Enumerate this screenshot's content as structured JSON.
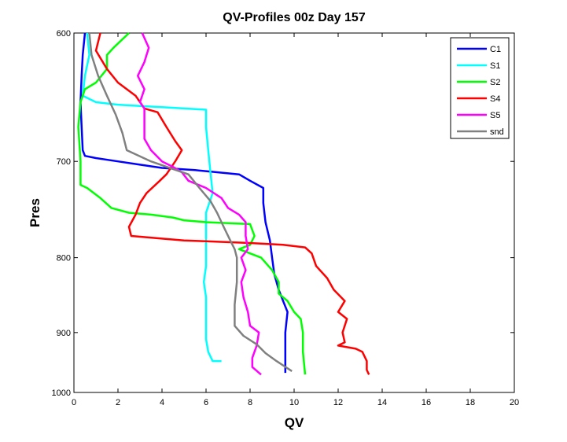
{
  "chart_data": {
    "type": "line",
    "title": "QV-Profiles 00z Day 157",
    "xlabel": "QV",
    "ylabel": "Pres",
    "xlim": [
      0,
      20
    ],
    "ylim": [
      600,
      1000
    ],
    "y_scale": "reciprocal",
    "y_reversed": true,
    "xticks": [
      0,
      2,
      4,
      6,
      8,
      10,
      12,
      14,
      16,
      18,
      20
    ],
    "yticks": [
      600,
      700,
      800,
      900,
      1000
    ],
    "grid": false,
    "legend_position": "top-right",
    "series": [
      {
        "name": "C1",
        "color": "#0000ff",
        "points": [
          [
            0.5,
            600
          ],
          [
            0.4,
            615
          ],
          [
            0.35,
            630
          ],
          [
            0.3,
            650
          ],
          [
            0.35,
            670
          ],
          [
            0.4,
            690
          ],
          [
            0.5,
            695
          ],
          [
            1.0,
            697
          ],
          [
            2.0,
            700
          ],
          [
            3.0,
            703
          ],
          [
            4.0,
            706
          ],
          [
            5.5,
            708
          ],
          [
            6.5,
            710
          ],
          [
            7.5,
            712
          ],
          [
            8.0,
            718
          ],
          [
            8.6,
            725
          ],
          [
            8.6,
            740
          ],
          [
            8.7,
            760
          ],
          [
            8.9,
            780
          ],
          [
            9.0,
            800
          ],
          [
            9.1,
            820
          ],
          [
            9.3,
            840
          ],
          [
            9.5,
            855
          ],
          [
            9.7,
            870
          ],
          [
            9.6,
            900
          ],
          [
            9.6,
            930
          ],
          [
            9.6,
            965
          ]
        ]
      },
      {
        "name": "S1",
        "color": "#00ffff",
        "points": [
          [
            0.6,
            600
          ],
          [
            0.7,
            615
          ],
          [
            0.5,
            630
          ],
          [
            0.4,
            645
          ],
          [
            1.0,
            650
          ],
          [
            2.0,
            652
          ],
          [
            3.0,
            653
          ],
          [
            4.0,
            654
          ],
          [
            5.0,
            655
          ],
          [
            6.0,
            656
          ],
          [
            6.0,
            670
          ],
          [
            6.1,
            690
          ],
          [
            6.2,
            710
          ],
          [
            6.3,
            730
          ],
          [
            6.0,
            750
          ],
          [
            6.0,
            770
          ],
          [
            6.0,
            790
          ],
          [
            6.0,
            810
          ],
          [
            5.9,
            830
          ],
          [
            6.0,
            850
          ],
          [
            6.0,
            870
          ],
          [
            6.0,
            890
          ],
          [
            6.0,
            910
          ],
          [
            6.1,
            930
          ],
          [
            6.3,
            945
          ],
          [
            6.7,
            945
          ]
        ]
      },
      {
        "name": "S2",
        "color": "#00ff00",
        "points": [
          [
            2.5,
            600
          ],
          [
            1.8,
            610
          ],
          [
            1.5,
            615
          ],
          [
            1.5,
            625
          ],
          [
            1.0,
            635
          ],
          [
            0.5,
            640
          ],
          [
            0.3,
            650
          ],
          [
            0.2,
            670
          ],
          [
            0.3,
            700
          ],
          [
            0.3,
            722
          ],
          [
            0.6,
            725
          ],
          [
            1.2,
            735
          ],
          [
            1.7,
            745
          ],
          [
            2.5,
            750
          ],
          [
            3.5,
            752
          ],
          [
            4.5,
            755
          ],
          [
            5.0,
            758
          ],
          [
            6.0,
            760
          ],
          [
            7.0,
            761
          ],
          [
            8.0,
            762
          ],
          [
            8.2,
            775
          ],
          [
            8.0,
            785
          ],
          [
            7.5,
            790
          ],
          [
            8.0,
            795
          ],
          [
            8.5,
            800
          ],
          [
            9.0,
            815
          ],
          [
            9.3,
            830
          ],
          [
            9.3,
            845
          ],
          [
            9.7,
            855
          ],
          [
            10.0,
            870
          ],
          [
            10.3,
            880
          ],
          [
            10.4,
            900
          ],
          [
            10.4,
            930
          ],
          [
            10.5,
            968
          ]
        ]
      },
      {
        "name": "S4",
        "color": "#ff0000",
        "points": [
          [
            1.2,
            600
          ],
          [
            1.0,
            612
          ],
          [
            1.5,
            625
          ],
          [
            2.0,
            635
          ],
          [
            2.8,
            645
          ],
          [
            3.2,
            655
          ],
          [
            3.8,
            658
          ],
          [
            4.2,
            670
          ],
          [
            4.6,
            682
          ],
          [
            4.9,
            690
          ],
          [
            4.6,
            700
          ],
          [
            4.2,
            712
          ],
          [
            3.9,
            718
          ],
          [
            3.3,
            730
          ],
          [
            3.0,
            740
          ],
          [
            2.8,
            752
          ],
          [
            2.5,
            765
          ],
          [
            2.6,
            775
          ],
          [
            4.0,
            778
          ],
          [
            5.0,
            780
          ],
          [
            6.0,
            781
          ],
          [
            7.0,
            782
          ],
          [
            8.0,
            783
          ],
          [
            9.5,
            785
          ],
          [
            10.5,
            788
          ],
          [
            10.8,
            795
          ],
          [
            11.0,
            810
          ],
          [
            11.5,
            825
          ],
          [
            11.8,
            840
          ],
          [
            12.3,
            855
          ],
          [
            12.0,
            870
          ],
          [
            12.4,
            880
          ],
          [
            12.2,
            900
          ],
          [
            12.3,
            915
          ],
          [
            12.0,
            920
          ],
          [
            12.8,
            925
          ],
          [
            13.1,
            930
          ],
          [
            13.3,
            945
          ],
          [
            13.3,
            960
          ],
          [
            13.4,
            968
          ]
        ]
      },
      {
        "name": "S5",
        "color": "#ff00ff",
        "points": [
          [
            3.1,
            600
          ],
          [
            3.4,
            610
          ],
          [
            3.2,
            620
          ],
          [
            2.9,
            630
          ],
          [
            3.2,
            640
          ],
          [
            3.0,
            650
          ],
          [
            3.2,
            655
          ],
          [
            3.2,
            665
          ],
          [
            3.2,
            680
          ],
          [
            3.5,
            690
          ],
          [
            4.0,
            700
          ],
          [
            4.5,
            705
          ],
          [
            4.9,
            710
          ],
          [
            5.2,
            718
          ],
          [
            6.0,
            725
          ],
          [
            6.7,
            735
          ],
          [
            7.0,
            745
          ],
          [
            7.5,
            752
          ],
          [
            7.8,
            760
          ],
          [
            7.8,
            775
          ],
          [
            7.9,
            790
          ],
          [
            7.6,
            800
          ],
          [
            7.8,
            815
          ],
          [
            7.6,
            830
          ],
          [
            7.7,
            850
          ],
          [
            7.9,
            870
          ],
          [
            8.0,
            890
          ],
          [
            8.4,
            900
          ],
          [
            8.3,
            920
          ],
          [
            8.1,
            940
          ],
          [
            8.1,
            955
          ],
          [
            8.5,
            968
          ]
        ]
      },
      {
        "name": "snd",
        "color": "#808080",
        "points": [
          [
            0.7,
            600
          ],
          [
            0.8,
            615
          ],
          [
            1.1,
            630
          ],
          [
            1.5,
            645
          ],
          [
            1.9,
            660
          ],
          [
            2.2,
            675
          ],
          [
            2.4,
            690
          ],
          [
            3.5,
            700
          ],
          [
            4.5,
            707
          ],
          [
            5.2,
            712
          ],
          [
            5.7,
            725
          ],
          [
            6.2,
            738
          ],
          [
            6.5,
            750
          ],
          [
            6.8,
            765
          ],
          [
            7.1,
            780
          ],
          [
            7.3,
            790
          ],
          [
            7.4,
            800
          ],
          [
            7.4,
            830
          ],
          [
            7.3,
            860
          ],
          [
            7.3,
            890
          ],
          [
            7.7,
            905
          ],
          [
            8.3,
            918
          ],
          [
            8.7,
            932
          ],
          [
            9.2,
            945
          ],
          [
            9.9,
            962
          ]
        ]
      }
    ]
  }
}
